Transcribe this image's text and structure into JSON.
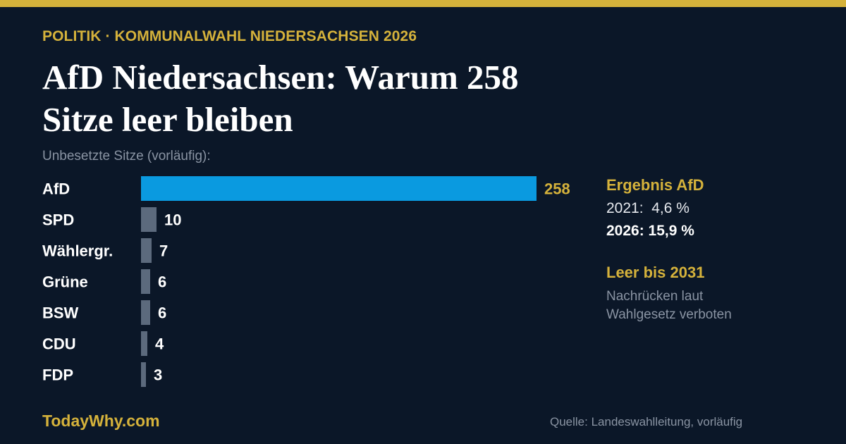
{
  "kicker": "POLITIK · KOMMUNALWAHL NIEDERSACHSEN 2026",
  "headline_line1": "AfD Niedersachsen: Warum 258",
  "headline_line2": "Sitze leer bleiben",
  "subtitle": "Unbesetzte Sitze (vorläufig):",
  "colors": {
    "background": "#0b1728",
    "accent": "#d5b23b",
    "highlight_bar": "#0a9ae0",
    "other_bar": "#5c6a7d"
  },
  "chart_data": {
    "type": "bar",
    "orientation": "horizontal",
    "categories": [
      "AfD",
      "SPD",
      "Wählergr.",
      "Grüne",
      "BSW",
      "CDU",
      "FDP"
    ],
    "values": [
      258,
      10,
      7,
      6,
      6,
      4,
      3
    ],
    "highlight": "AfD",
    "grid": false,
    "legend": "none"
  },
  "side": {
    "result_heading": "Ergebnis AfD",
    "result_2021": "2021:  4,6 %",
    "result_2026": "2026: 15,9 %",
    "empty_heading": "Leer bis 2031",
    "empty_note_1": "Nachrücken laut",
    "empty_note_2": "Wahlgesetz verboten"
  },
  "footer": {
    "brand": "TodayWhy.com",
    "source": "Quelle: Landeswahlleitung, vorläufig"
  }
}
